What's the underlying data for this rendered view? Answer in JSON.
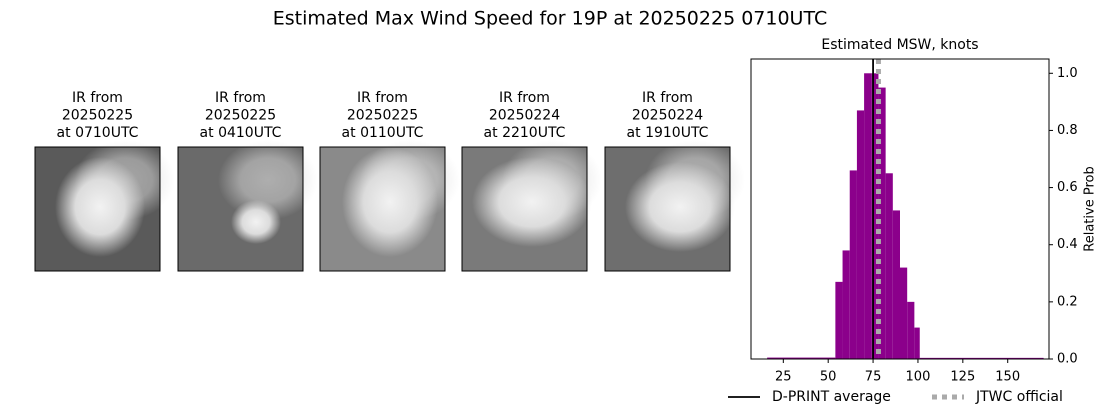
{
  "title": "Estimated Max Wind Speed for 19P at 20250225 0710UTC",
  "panels": [
    {
      "lines": [
        "IR from",
        "20250225",
        "at 0710UTC"
      ]
    },
    {
      "lines": [
        "IR from",
        "20250225",
        "at 0410UTC"
      ]
    },
    {
      "lines": [
        "IR from",
        "20250225",
        "at 0110UTC"
      ]
    },
    {
      "lines": [
        "IR from",
        "20250224",
        "at 2210UTC"
      ]
    },
    {
      "lines": [
        "IR from",
        "20250224",
        "at 1910UTC"
      ]
    }
  ],
  "chart_data": {
    "type": "histogram",
    "title": "Estimated MSW, knots",
    "y_label": "Relative Prob",
    "color": "#8b008b",
    "bins": [
      16,
      54,
      58,
      62,
      66,
      70,
      74,
      78,
      82,
      86,
      90,
      94,
      98,
      101,
      170
    ],
    "values": [
      0.005,
      0.27,
      0.38,
      0.66,
      0.87,
      1.0,
      1.0,
      0.95,
      0.65,
      0.52,
      0.32,
      0.2,
      0.11,
      0.004
    ],
    "xlim": [
      7,
      173
    ],
    "xticks": [
      25,
      50,
      75,
      100,
      125,
      150
    ],
    "ylim": [
      0,
      1.05
    ],
    "yticks": [
      {
        "value": 0,
        "label": "0.0"
      },
      {
        "value": 0.2,
        "label": "0.2"
      },
      {
        "value": 0.4,
        "label": "0.4"
      },
      {
        "value": 0.6,
        "label": "0.6"
      },
      {
        "value": 0.8,
        "label": "0.8"
      },
      {
        "value": 1,
        "label": "1.0"
      }
    ],
    "lines": [
      {
        "name": "D-PRINT average",
        "value": 75,
        "color": "#000000",
        "style": "solid"
      },
      {
        "name": "JTWC official",
        "value": 78,
        "color": "#aaaaaa",
        "style": "dotted"
      }
    ],
    "legend": "bottom"
  }
}
